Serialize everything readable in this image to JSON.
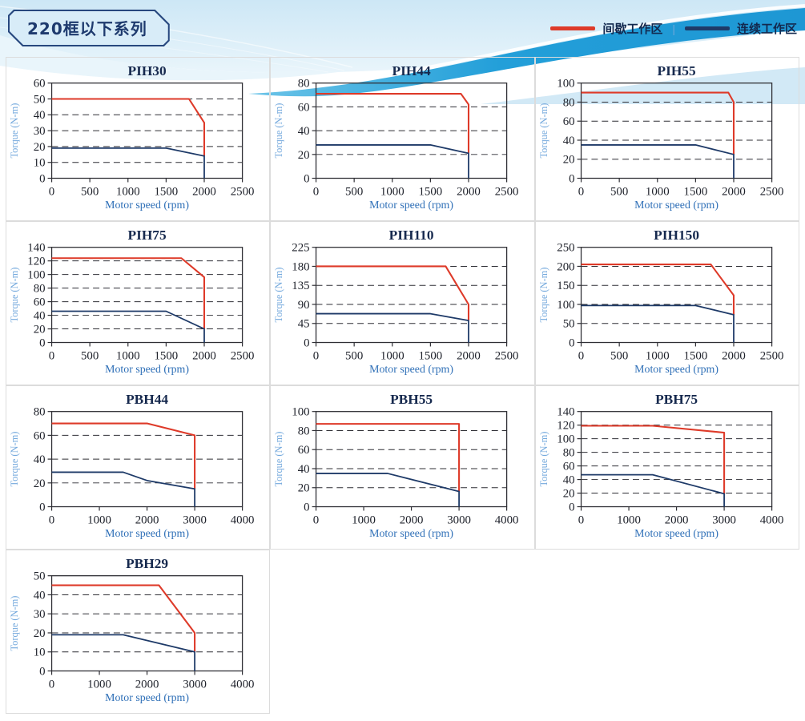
{
  "header": {
    "series_title": "220框以下系列",
    "legend": {
      "separator": "|",
      "items": [
        {
          "key": "intermittent",
          "label": "间歇工作区",
          "color": "#de3a29"
        },
        {
          "key": "continuous",
          "label": "连续工作区",
          "color": "#1e3a68"
        }
      ]
    }
  },
  "theme": {
    "intermittent_color": "#de3a29",
    "continuous_color": "#1e3a68",
    "chart_title_color": "#16294e",
    "ylabel_color": "#74a9dd",
    "xlabel_color": "#2e6fb7",
    "tick_color": "#1f222b",
    "frame_color": "#2f2f35",
    "banner_wave_color": "#239fd9",
    "banner_light_color": "#d9edf8"
  },
  "chart_data": [
    {
      "type": "line",
      "title": "PIH30",
      "xlabel": "Motor speed (rpm)",
      "ylabel": "Torque (N-m)",
      "xlim": [
        0,
        2500
      ],
      "xticks": [
        0,
        500,
        1000,
        1500,
        2000,
        2500
      ],
      "ylim": [
        0,
        60
      ],
      "yticks": [
        0,
        10,
        20,
        30,
        40,
        50,
        60
      ],
      "grid": "dashed-horizontal",
      "legend_position": "page-top-right",
      "series": [
        {
          "key": "intermittent",
          "name": "间歇工作区",
          "points": [
            [
              0,
              50
            ],
            [
              1800,
              50
            ],
            [
              2000,
              35
            ],
            [
              2000,
              14
            ]
          ]
        },
        {
          "key": "continuous",
          "name": "连续工作区",
          "points": [
            [
              0,
              19
            ],
            [
              1500,
              19
            ],
            [
              2000,
              14
            ],
            [
              2000,
              0
            ]
          ]
        }
      ]
    },
    {
      "type": "line",
      "title": "PIH44",
      "xlabel": "Motor speed (rpm)",
      "ylabel": "Torque (N-m)",
      "xlim": [
        0,
        2500
      ],
      "xticks": [
        0,
        500,
        1000,
        1500,
        2000,
        2500
      ],
      "ylim": [
        0,
        80
      ],
      "yticks": [
        0,
        20,
        40,
        60,
        80
      ],
      "grid": "dashed-horizontal",
      "legend_position": "page-top-right",
      "series": [
        {
          "key": "intermittent",
          "name": "间歇工作区",
          "points": [
            [
              0,
              71
            ],
            [
              1900,
              71
            ],
            [
              2000,
              62
            ],
            [
              2000,
              21
            ]
          ]
        },
        {
          "key": "continuous",
          "name": "连续工作区",
          "points": [
            [
              0,
              28
            ],
            [
              1500,
              28
            ],
            [
              2000,
              21
            ],
            [
              2000,
              0
            ]
          ]
        }
      ]
    },
    {
      "type": "line",
      "title": "PIH55",
      "xlabel": "Motor speed (rpm)",
      "ylabel": "Torque (N-m)",
      "xlim": [
        0,
        2500
      ],
      "xticks": [
        0,
        500,
        1000,
        1500,
        2000,
        2500
      ],
      "ylim": [
        0,
        100
      ],
      "yticks": [
        0,
        20,
        40,
        60,
        80,
        100
      ],
      "grid": "dashed-horizontal",
      "legend_position": "page-top-right",
      "series": [
        {
          "key": "intermittent",
          "name": "间歇工作区",
          "points": [
            [
              0,
              90
            ],
            [
              1930,
              90
            ],
            [
              2000,
              80
            ],
            [
              2000,
              25
            ]
          ]
        },
        {
          "key": "continuous",
          "name": "连续工作区",
          "points": [
            [
              0,
              35
            ],
            [
              1500,
              35
            ],
            [
              2000,
              25
            ],
            [
              2000,
              0
            ]
          ]
        }
      ]
    },
    {
      "type": "line",
      "title": "PIH75",
      "xlabel": "Motor speed (rpm)",
      "ylabel": "Torque (N-m)",
      "xlim": [
        0,
        2500
      ],
      "xticks": [
        0,
        500,
        1000,
        1500,
        2000,
        2500
      ],
      "ylim": [
        0,
        140
      ],
      "yticks": [
        0,
        20,
        40,
        60,
        80,
        100,
        120,
        140
      ],
      "grid": "dashed-horizontal",
      "legend_position": "page-top-right",
      "series": [
        {
          "key": "intermittent",
          "name": "间歇工作区",
          "points": [
            [
              0,
              124
            ],
            [
              1700,
              124
            ],
            [
              2000,
              96
            ],
            [
              2000,
              20
            ]
          ]
        },
        {
          "key": "continuous",
          "name": "连续工作区",
          "points": [
            [
              0,
              46
            ],
            [
              1500,
              46
            ],
            [
              2000,
              20
            ],
            [
              2000,
              0
            ]
          ]
        }
      ]
    },
    {
      "type": "line",
      "title": "PIH110",
      "xlabel": "Motor speed (rpm)",
      "ylabel": "Torque (N-m)",
      "xlim": [
        0,
        2500
      ],
      "xticks": [
        0,
        500,
        1000,
        1500,
        2000,
        2500
      ],
      "ylim": [
        0,
        225
      ],
      "yticks": [
        0,
        45,
        90,
        135,
        180,
        225
      ],
      "grid": "dashed-horizontal",
      "legend_position": "page-top-right",
      "series": [
        {
          "key": "intermittent",
          "name": "间歇工作区",
          "points": [
            [
              0,
              180
            ],
            [
              1700,
              180
            ],
            [
              2000,
              90
            ],
            [
              2000,
              52
            ]
          ]
        },
        {
          "key": "continuous",
          "name": "连续工作区",
          "points": [
            [
              0,
              68
            ],
            [
              1500,
              68
            ],
            [
              2000,
              52
            ],
            [
              2000,
              0
            ]
          ]
        }
      ]
    },
    {
      "type": "line",
      "title": "PIH150",
      "xlabel": "Motor speed (rpm)",
      "ylabel": "Torque (N-m)",
      "xlim": [
        0,
        2500
      ],
      "xticks": [
        0,
        500,
        1000,
        1500,
        2000,
        2500
      ],
      "ylim": [
        0,
        250
      ],
      "yticks": [
        0,
        50,
        100,
        150,
        200,
        250
      ],
      "grid": "dashed-horizontal",
      "legend_position": "page-top-right",
      "series": [
        {
          "key": "intermittent",
          "name": "间歇工作区",
          "points": [
            [
              0,
              205
            ],
            [
              1700,
              205
            ],
            [
              2000,
              124
            ],
            [
              2000,
              73
            ]
          ]
        },
        {
          "key": "continuous",
          "name": "连续工作区",
          "points": [
            [
              0,
              97
            ],
            [
              1500,
              97
            ],
            [
              2000,
              73
            ],
            [
              2000,
              0
            ]
          ]
        }
      ]
    },
    {
      "type": "line",
      "title": "PBH44",
      "xlabel": "Motor speed (rpm)",
      "ylabel": "Torque (N-m)",
      "xlim": [
        0,
        4000
      ],
      "xticks": [
        0,
        1000,
        2000,
        3000,
        4000
      ],
      "ylim": [
        0,
        80
      ],
      "yticks": [
        0,
        20,
        40,
        60,
        80
      ],
      "grid": "dashed-horizontal",
      "legend_position": "page-top-right",
      "series": [
        {
          "key": "intermittent",
          "name": "间歇工作区",
          "points": [
            [
              0,
              70
            ],
            [
              2000,
              70
            ],
            [
              3000,
              60
            ],
            [
              3000,
              15
            ]
          ]
        },
        {
          "key": "continuous",
          "name": "连续工作区",
          "points": [
            [
              0,
              29
            ],
            [
              1500,
              29
            ],
            [
              2000,
              22
            ],
            [
              3000,
              15
            ],
            [
              3000,
              0
            ]
          ]
        }
      ]
    },
    {
      "type": "line",
      "title": "PBH55",
      "xlabel": "Motor speed (rpm)",
      "ylabel": "Torque (N-m)",
      "xlim": [
        0,
        4000
      ],
      "xticks": [
        0,
        1000,
        2000,
        3000,
        4000
      ],
      "ylim": [
        0,
        100
      ],
      "yticks": [
        0,
        20,
        40,
        60,
        80,
        100
      ],
      "grid": "dashed-horizontal",
      "legend_position": "page-top-right",
      "series": [
        {
          "key": "intermittent",
          "name": "间歇工作区",
          "points": [
            [
              0,
              87
            ],
            [
              3000,
              87
            ],
            [
              3000,
              16
            ]
          ]
        },
        {
          "key": "continuous",
          "name": "连续工作区",
          "points": [
            [
              0,
              35
            ],
            [
              1500,
              35
            ],
            [
              3000,
              16
            ],
            [
              3000,
              0
            ]
          ]
        }
      ]
    },
    {
      "type": "line",
      "title": "PBH75",
      "xlabel": "Motor speed (rpm)",
      "ylabel": "Torque (N-m)",
      "xlim": [
        0,
        4000
      ],
      "xticks": [
        0,
        1000,
        2000,
        3000,
        4000
      ],
      "ylim": [
        0,
        140
      ],
      "yticks": [
        0,
        20,
        40,
        60,
        80,
        100,
        120,
        140
      ],
      "grid": "dashed-horizontal",
      "legend_position": "page-top-right",
      "series": [
        {
          "key": "intermittent",
          "name": "间歇工作区",
          "points": [
            [
              0,
              119
            ],
            [
              1500,
              119
            ],
            [
              3000,
              109
            ],
            [
              3000,
              19
            ]
          ]
        },
        {
          "key": "continuous",
          "name": "连续工作区",
          "points": [
            [
              0,
              47
            ],
            [
              1500,
              47
            ],
            [
              3000,
              19
            ],
            [
              3000,
              0
            ]
          ]
        }
      ]
    },
    {
      "type": "line",
      "title": "PBH29",
      "xlabel": "Motor speed (rpm)",
      "ylabel": "Torque (N-m)",
      "xlim": [
        0,
        4000
      ],
      "xticks": [
        0,
        1000,
        2000,
        3000,
        4000
      ],
      "ylim": [
        0,
        50
      ],
      "yticks": [
        0,
        10,
        20,
        30,
        40,
        50
      ],
      "grid": "dashed-horizontal",
      "legend_position": "page-top-right",
      "series": [
        {
          "key": "intermittent",
          "name": "间歇工作区",
          "points": [
            [
              0,
              45
            ],
            [
              2250,
              45
            ],
            [
              3000,
              20
            ],
            [
              3000,
              10
            ]
          ]
        },
        {
          "key": "continuous",
          "name": "连续工作区",
          "points": [
            [
              0,
              19
            ],
            [
              1500,
              19
            ],
            [
              3000,
              10
            ],
            [
              3000,
              0
            ]
          ]
        }
      ]
    }
  ]
}
